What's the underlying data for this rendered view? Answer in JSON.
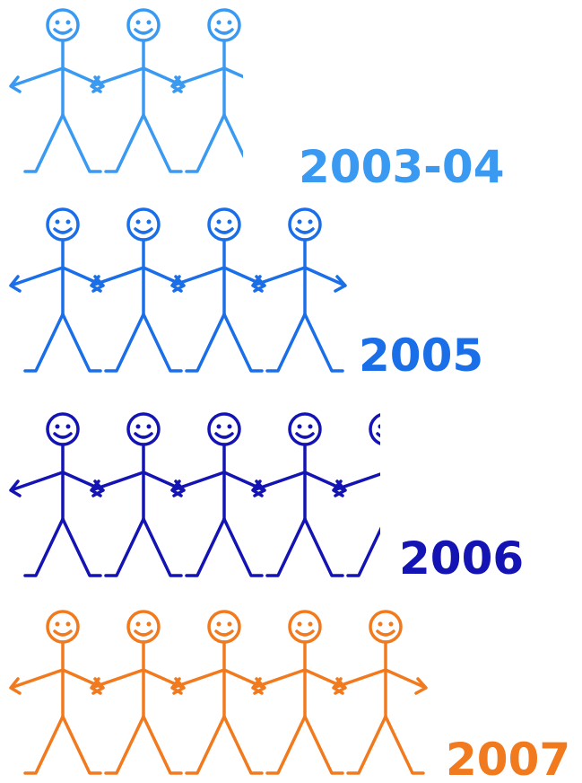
{
  "chart_data": {
    "type": "pictograph",
    "categories": [
      "2003-04",
      "2005",
      "2006",
      "2007"
    ],
    "values": [
      2.7,
      4,
      4.4,
      5
    ],
    "colors": [
      "#3a9af2",
      "#1a6ee8",
      "#1414b4",
      "#f27a1e"
    ]
  }
}
